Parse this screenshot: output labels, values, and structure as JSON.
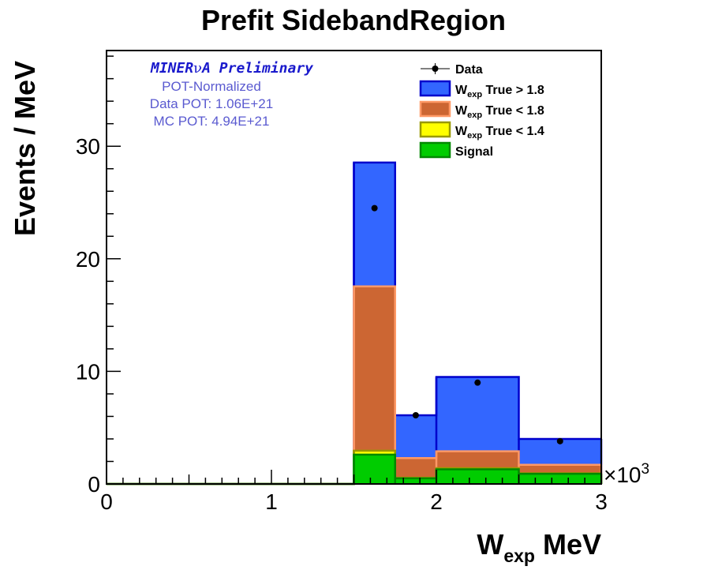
{
  "chart_data": {
    "type": "bar",
    "title": "Prefit SidebandRegion",
    "xlabel": {
      "main": "W",
      "sub": "exp",
      "rest": " MeV"
    },
    "ylabel": "Events / MeV",
    "x_multiplier": {
      "base": "×10",
      "exp": "3"
    },
    "xlim": [
      0,
      3
    ],
    "ylim": [
      0,
      38.5
    ],
    "x_ticks": [
      0,
      1,
      2,
      3
    ],
    "y_ticks": [
      0,
      10,
      20,
      30
    ],
    "bins": [
      [
        0.0,
        1.5
      ],
      [
        1.5,
        1.75
      ],
      [
        1.75,
        2.0
      ],
      [
        2.0,
        2.5
      ],
      [
        2.5,
        3.0
      ]
    ],
    "stack": [
      {
        "name": "Signal",
        "color": "#00cc00",
        "line": "#008800",
        "values": [
          0,
          2.6,
          0.5,
          1.3,
          0.9
        ]
      },
      {
        "name_parts": {
          "main": "W",
          "sub": "exp",
          "rest": " True < 1.4"
        },
        "color": "#ffff00",
        "line": "#999900",
        "values": [
          0,
          0.35,
          0.05,
          0.1,
          0.05
        ]
      },
      {
        "name_parts": {
          "main": "W",
          "sub": "exp",
          "rest": " True < 1.8"
        },
        "color": "#cc6633",
        "line": "#ff9966",
        "values": [
          0,
          14.6,
          1.75,
          1.5,
          0.75
        ]
      },
      {
        "name_parts": {
          "main": "W",
          "sub": "exp",
          "rest": " True > 1.8"
        },
        "color": "#3366ff",
        "line": "#0000cc",
        "values": [
          0,
          11.0,
          3.8,
          6.6,
          2.3
        ]
      }
    ],
    "data": {
      "name": "Data",
      "points": [
        {
          "x": 1.625,
          "y": 24.5
        },
        {
          "x": 1.875,
          "y": 6.1
        },
        {
          "x": 2.25,
          "y": 9.0
        },
        {
          "x": 2.75,
          "y": 3.8
        }
      ]
    },
    "legend_position": "top-right",
    "annotations": {
      "main_a": "MINER",
      "main_nu": "ν",
      "main_b": "A Preliminary",
      "lines": [
        "POT-Normalized",
        "Data POT: 1.06E+21",
        "MC POT: 4.94E+21"
      ]
    }
  }
}
